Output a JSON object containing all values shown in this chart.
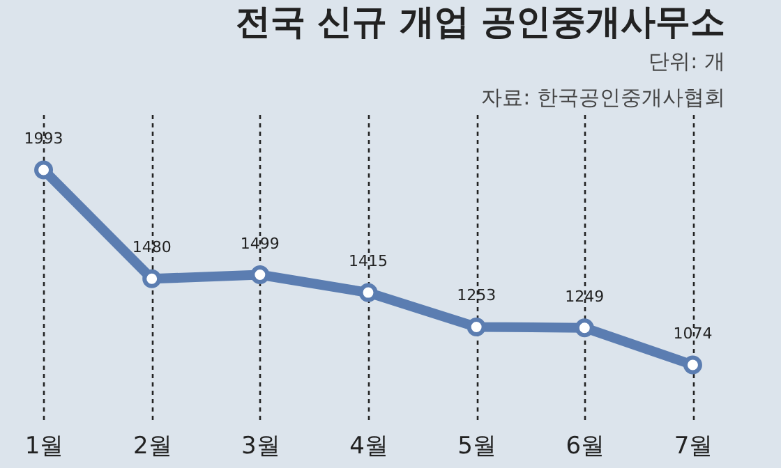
{
  "chart_data": {
    "type": "line",
    "title": "전국 신규 개업 공인중개사무소",
    "subtitle": "단위: 개",
    "annotations": [
      "자료: 한국공인중개사협회"
    ],
    "categories": [
      "1월",
      "2월",
      "3월",
      "4월",
      "5월",
      "6월",
      "7월"
    ],
    "series": [
      {
        "color": "#5b7db1",
        "values": [
          1993,
          1480,
          1499,
          1415,
          1253,
          1249,
          1074
        ]
      }
    ],
    "data_labels": true,
    "marker": "circle",
    "grid": "x",
    "tick_labels": "x"
  }
}
